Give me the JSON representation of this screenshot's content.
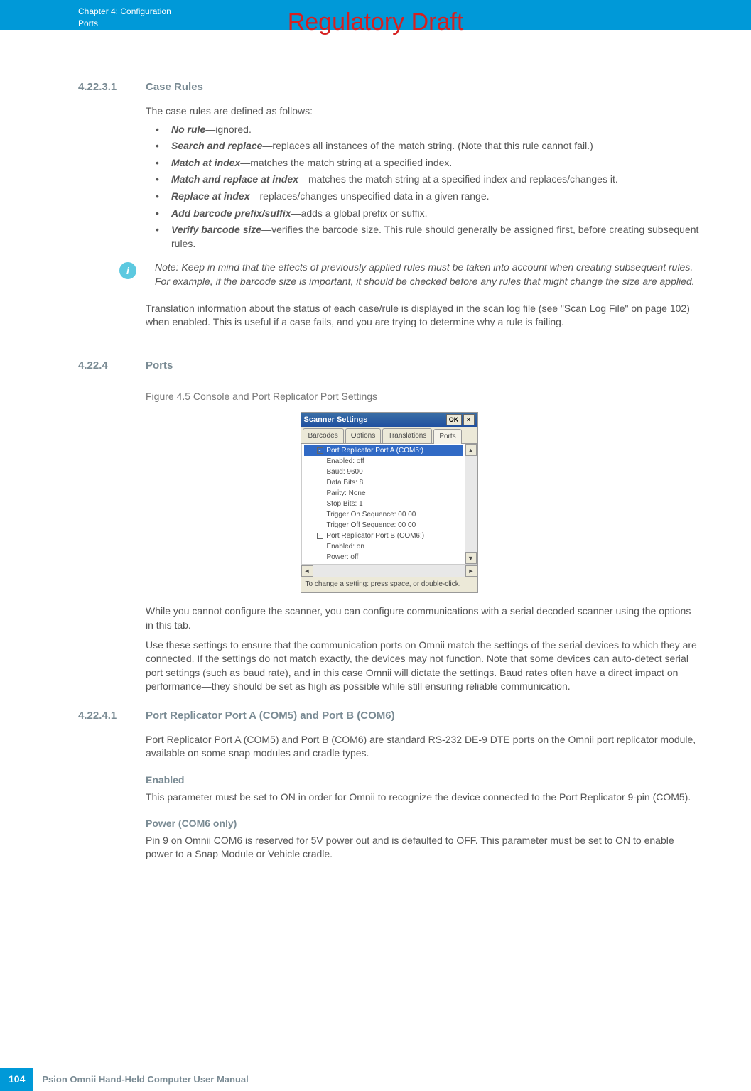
{
  "watermark": "Regulatory Draft",
  "header": {
    "chapter": "Chapter 4:  Configuration",
    "subtitle": "Ports"
  },
  "section1": {
    "num": "4.22.3.1",
    "title": "Case Rules",
    "intro": "The case rules are defined as follows:",
    "bullets": [
      {
        "term": "No rule",
        "desc": "—ignored."
      },
      {
        "term": "Search and replace",
        "desc": "—replaces all instances of the match string. (Note that this rule cannot fail.)"
      },
      {
        "term": "Match at index",
        "desc": "—matches the match string at a specified index."
      },
      {
        "term": "Match and replace at index",
        "desc": "—matches the match string at a specified index and replaces/changes it."
      },
      {
        "term": "Replace at index",
        "desc": "—replaces/changes unspecified data in a given range."
      },
      {
        "term": "Add barcode prefix/suffix",
        "desc": "—adds a global prefix or suffix."
      },
      {
        "term": "Verify barcode size",
        "desc": "—verifies the barcode size. This rule should generally be assigned first, before creating subsequent rules."
      }
    ]
  },
  "note": {
    "label": "Note:",
    "text": "Keep in mind that the effects of previously applied rules must be taken into account when creating subsequent rules. For example, if the barcode size is important, it should be checked before any rules that might change the size are applied."
  },
  "translation_para": "Translation information about the status of each case/rule is displayed in the scan log file (see \"Scan Log File\" on page 102) when enabled. This is useful if a case fails, and you are trying to determine why a rule is failing.",
  "section2": {
    "num": "4.22.4",
    "title": "Ports",
    "figure_caption": "Figure 4.5    Console and Port Replicator Port Settings"
  },
  "dialog": {
    "title": "Scanner Settings",
    "ok_btn": "OK",
    "close_btn": "×",
    "tabs": [
      "Barcodes",
      "Options",
      "Translations",
      "Ports"
    ],
    "active_tab": 3,
    "tree": [
      {
        "type": "parent",
        "label": "Port Replicator Port A (COM5:)",
        "selected": true,
        "indent": 1
      },
      {
        "type": "leaf",
        "label": "Enabled: off",
        "indent": 2
      },
      {
        "type": "leaf",
        "label": "Baud: 9600",
        "indent": 2
      },
      {
        "type": "leaf",
        "label": "Data Bits: 8",
        "indent": 2
      },
      {
        "type": "leaf",
        "label": "Parity: None",
        "indent": 2
      },
      {
        "type": "leaf",
        "label": "Stop Bits: 1",
        "indent": 2
      },
      {
        "type": "leaf",
        "label": "Trigger On Sequence: 00 00",
        "indent": 2
      },
      {
        "type": "leaf",
        "label": "Trigger Off Sequence: 00 00",
        "indent": 2
      },
      {
        "type": "parent",
        "label": "Port Replicator Port B (COM6:)",
        "indent": 1
      },
      {
        "type": "leaf",
        "label": "Enabled: on",
        "indent": 2
      },
      {
        "type": "leaf",
        "label": "Power: off",
        "indent": 2
      }
    ],
    "status": "To change a setting: press space, or double-click."
  },
  "ports_para1": "While you cannot configure the scanner, you can configure communications with a serial decoded scanner using the options in this tab.",
  "ports_para2": "Use these settings to ensure that the communication ports on Omnii match the settings of the serial devices to which they are connected. If the settings do not match exactly, the devices may not function. Note that some devices can auto-detect serial port settings (such as baud rate), and in this case Omnii will dictate the settings. Baud rates often have a direct impact on performance—they should be set as high as possible while still ensuring reliable communication.",
  "section3": {
    "num": "4.22.4.1",
    "title": "Port Replicator Port A (COM5) and Port B (COM6)",
    "para": "Port Replicator Port A (COM5) and Port B (COM6) are standard RS-232 DE-9 DTE ports on the Omnii port replicator module, available on some snap modules and cradle types."
  },
  "enabled": {
    "heading": "Enabled",
    "para": "This parameter must be set to ON in order for Omnii to recognize the device connected to the Port Replicator 9-pin (COM5)."
  },
  "power": {
    "heading": "Power (COM6 only)",
    "para": "Pin 9 on Omnii COM6 is reserved for 5V power out and is defaulted to OFF. This parameter must be set to ON to enable power to a Snap Module or Vehicle cradle."
  },
  "footer": {
    "page_num": "104",
    "text": "Psion Omnii Hand-Held Computer User Manual"
  }
}
